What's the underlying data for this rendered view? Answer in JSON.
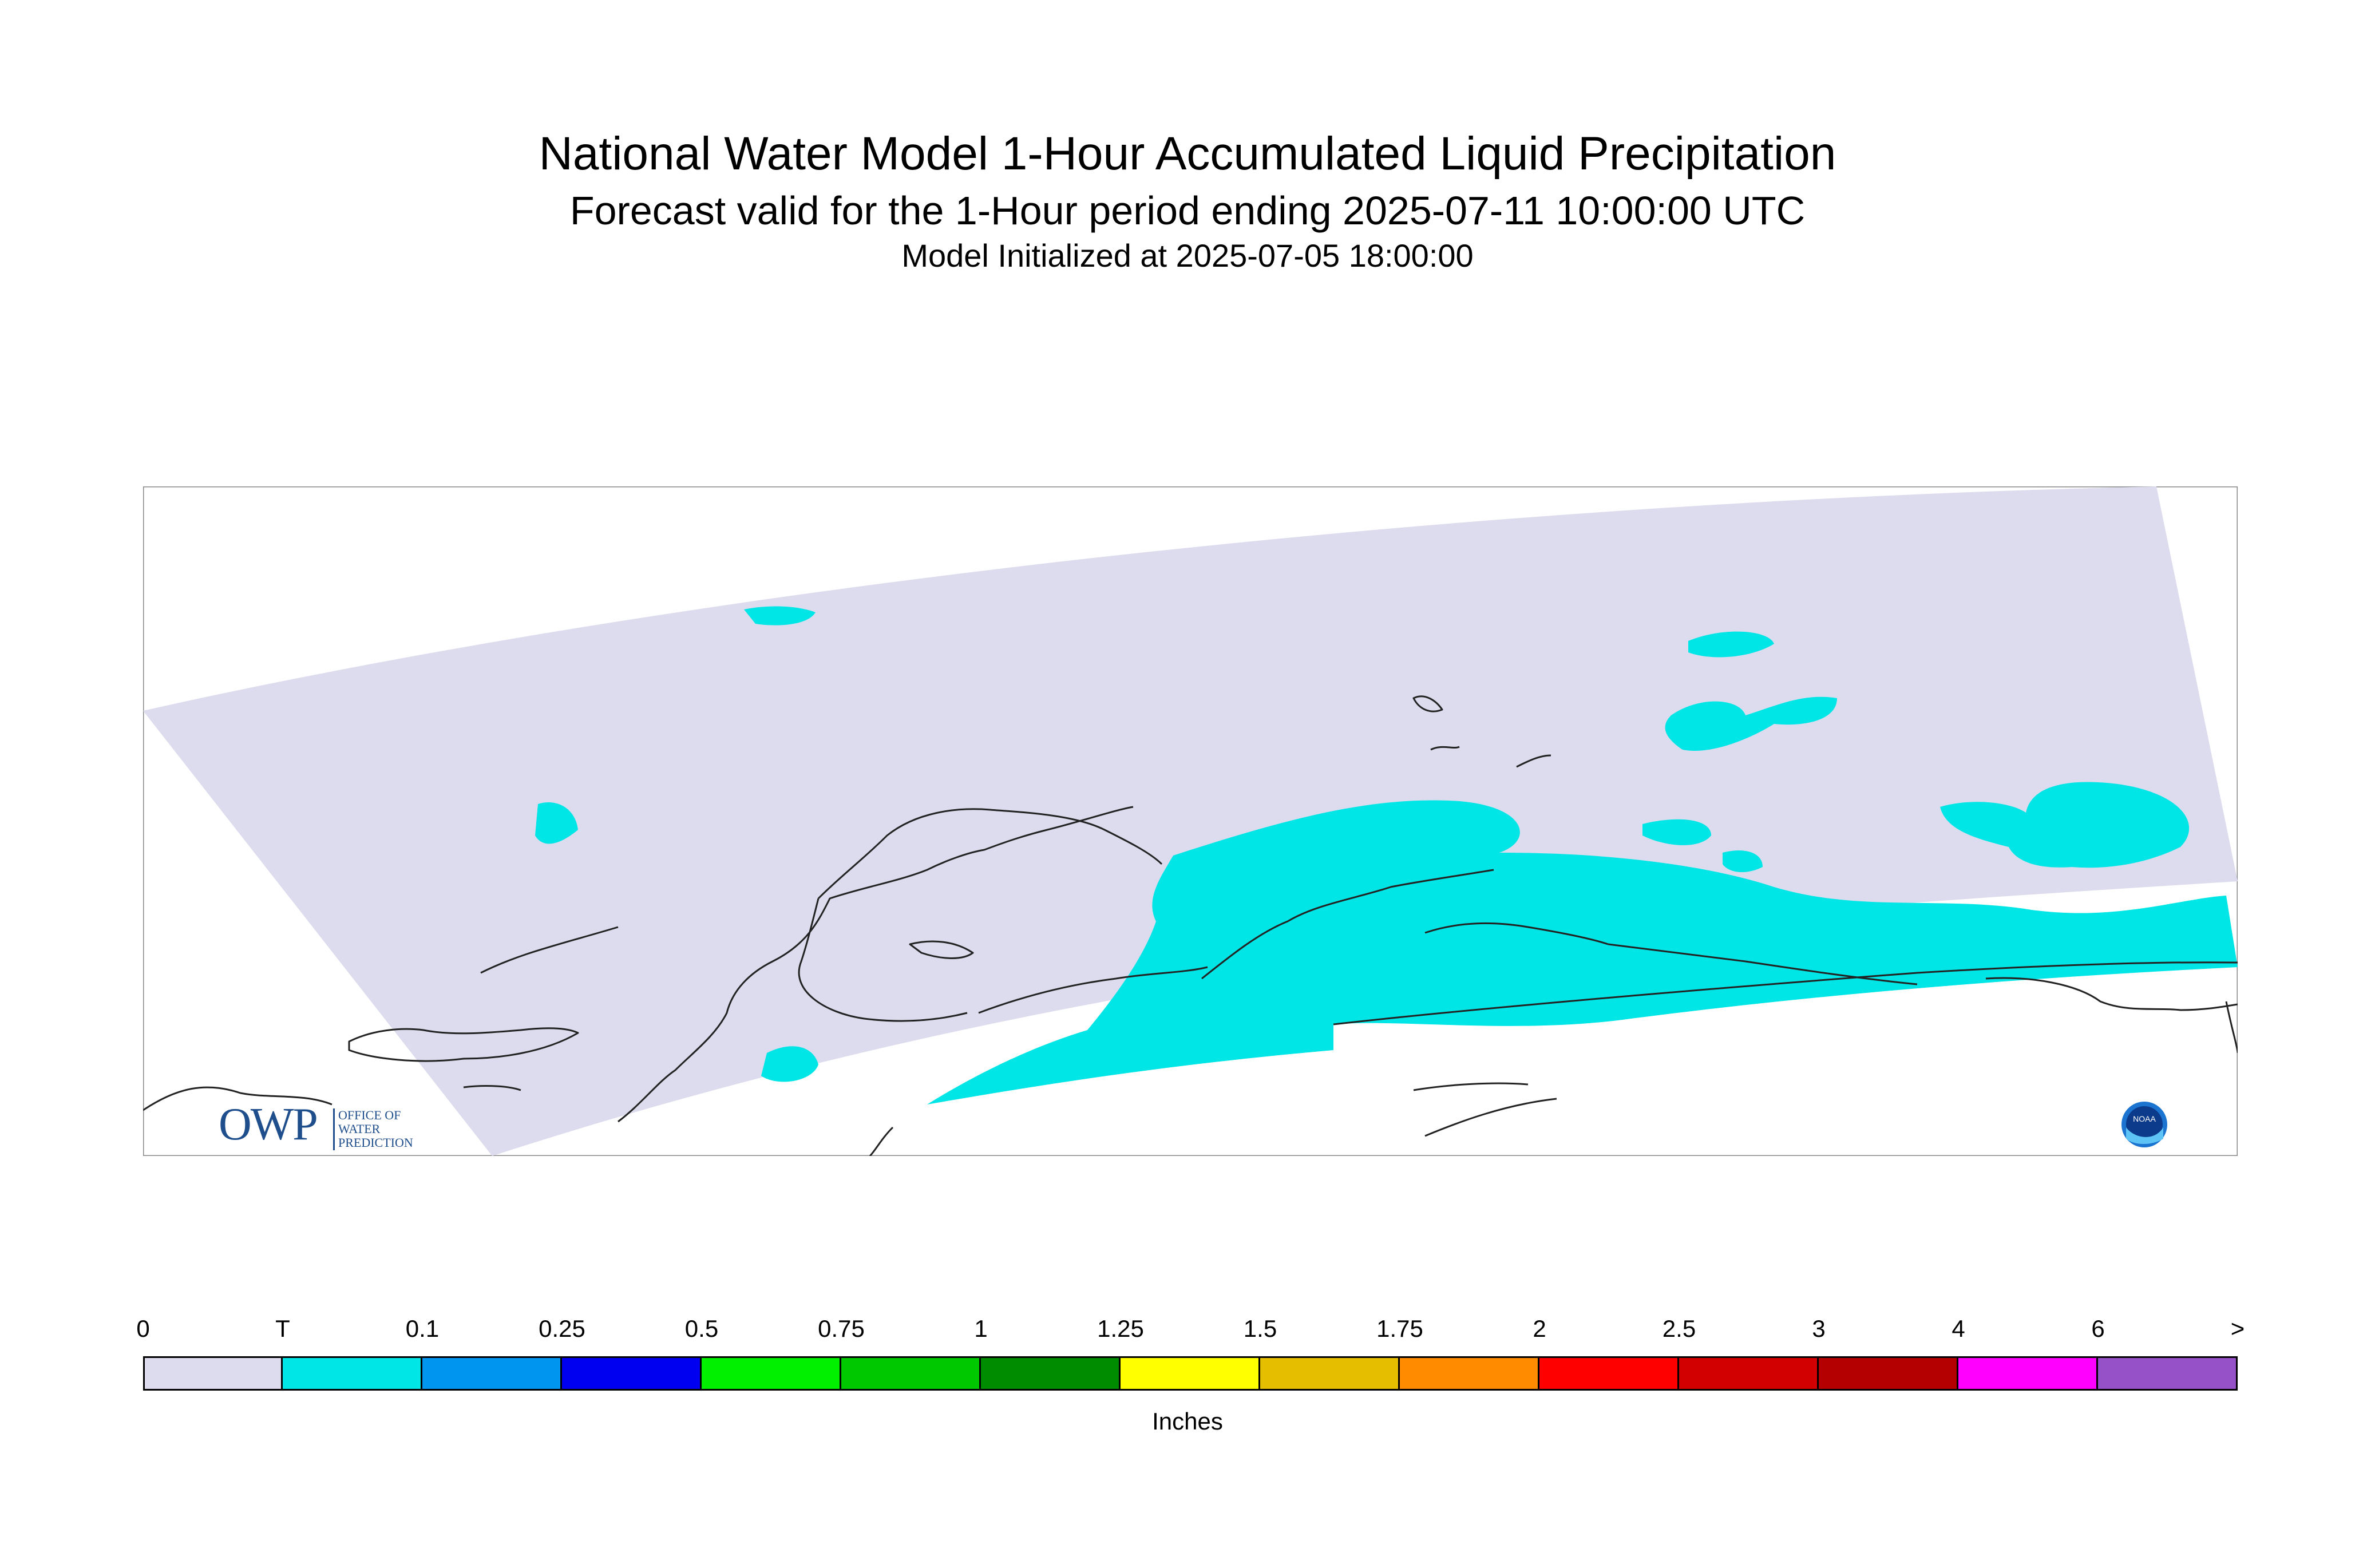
{
  "header": {
    "title": "National Water Model 1-Hour Accumulated Liquid Precipitation",
    "subtitle": "Forecast valid for the 1-Hour period ending 2025-07-11 10:00:00 UTC",
    "init": "Model Initialized at 2025-07-05 18:00:00"
  },
  "legend": {
    "units": "Inches",
    "ticks": [
      "0",
      "T",
      "0.1",
      "0.25",
      "0.5",
      "0.75",
      "1",
      "1.25",
      "1.5",
      "1.75",
      "2",
      "2.5",
      "3",
      "4",
      "6",
      ">"
    ],
    "colors": [
      "#dcdcee",
      "#00e5e5",
      "#0096f0",
      "#0000f0",
      "#00f000",
      "#00c800",
      "#008c00",
      "#ffff00",
      "#e6be00",
      "#ff8c00",
      "#ff0000",
      "#d20000",
      "#b40000",
      "#ff00ff",
      "#9650c8"
    ]
  },
  "map": {
    "domain_color": "#dcdcee",
    "precip_color": "#00e5e5",
    "coast_color": "#222222"
  },
  "logos": {
    "owp_mark": "OWP",
    "owp_text": [
      "OFFICE OF",
      "WATER",
      "PREDICTION"
    ],
    "noaa_text": "NOAA"
  }
}
